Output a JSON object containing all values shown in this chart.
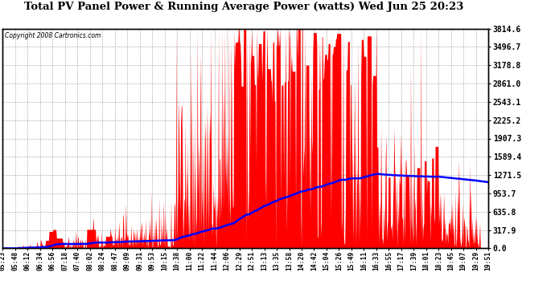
{
  "title": "Total PV Panel Power & Running Average Power (watts) Wed Jun 25 20:23",
  "copyright": "Copyright 2008 Cartronics.com",
  "background_color": "#ffffff",
  "plot_bg_color": "#ffffff",
  "bar_color": "#ff0000",
  "avg_line_color": "#0000ff",
  "grid_color": "#888888",
  "ymax": 3814.6,
  "ymin": 0.0,
  "yticks": [
    0.0,
    317.9,
    635.8,
    953.7,
    1271.5,
    1589.4,
    1907.3,
    2225.2,
    2543.1,
    2861.0,
    3178.8,
    3496.7,
    3814.6
  ],
  "time_labels": [
    "05:23",
    "05:48",
    "06:12",
    "06:34",
    "06:56",
    "07:18",
    "07:40",
    "08:02",
    "08:24",
    "08:47",
    "09:09",
    "09:31",
    "09:53",
    "10:15",
    "10:38",
    "11:00",
    "11:22",
    "11:44",
    "12:06",
    "12:29",
    "12:51",
    "13:13",
    "13:35",
    "13:58",
    "14:20",
    "14:42",
    "15:04",
    "15:26",
    "15:49",
    "16:11",
    "16:33",
    "16:55",
    "17:17",
    "17:39",
    "18:01",
    "18:23",
    "18:45",
    "19:07",
    "19:29",
    "19:51"
  ]
}
